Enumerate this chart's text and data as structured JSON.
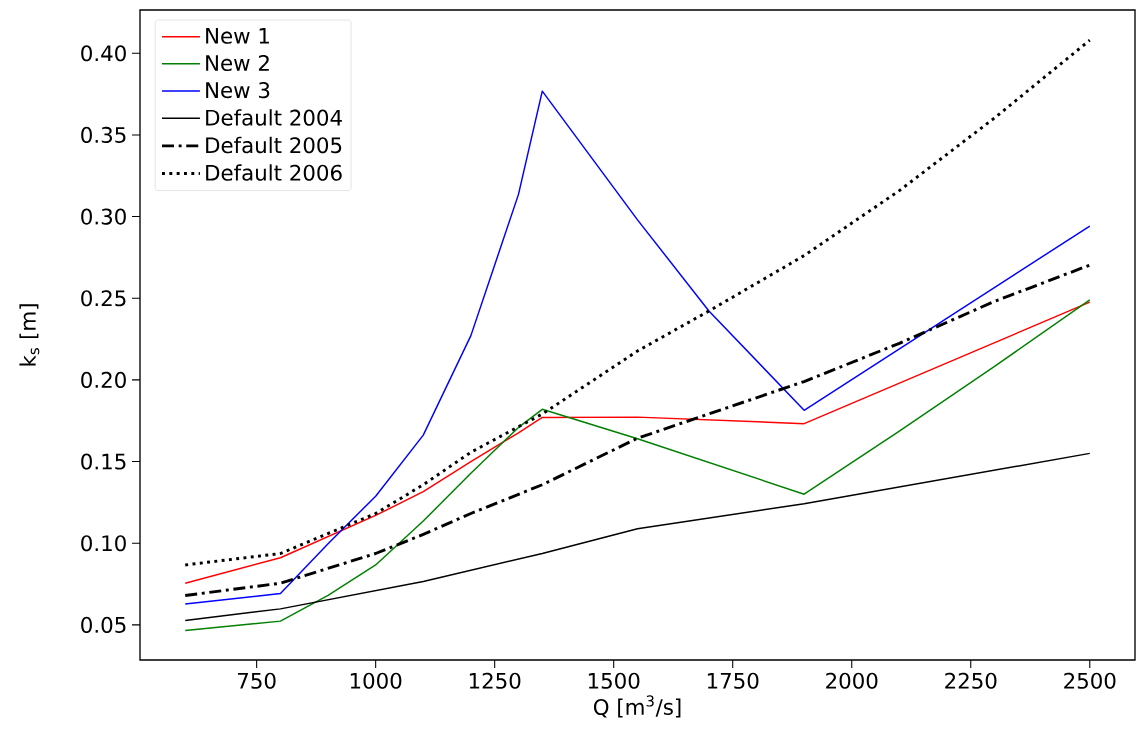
{
  "chart_data": {
    "type": "line",
    "xlabel": "Q [m$^{3}$/s]",
    "ylabel": "k$_{s}$ [m]",
    "xlim": [
      505,
      2595
    ],
    "ylim": [
      0.0285,
      0.4265
    ],
    "xticks": [
      750,
      1000,
      1250,
      1500,
      1750,
      2000,
      2250,
      2500
    ],
    "yticks": [
      {
        "value": 0.05,
        "label": "0.05"
      },
      {
        "value": 0.1,
        "label": "0.10"
      },
      {
        "value": 0.15,
        "label": "0.15"
      },
      {
        "value": 0.2,
        "label": "0.20"
      },
      {
        "value": 0.25,
        "label": "0.25"
      },
      {
        "value": 0.3,
        "label": "0.30"
      },
      {
        "value": 0.35,
        "label": "0.35"
      },
      {
        "value": 0.4,
        "label": "0.40"
      }
    ],
    "legend": "top left",
    "grid": false,
    "marker": "none",
    "series": [
      {
        "name": "New 1",
        "color": "#ff0000",
        "line_style": "solid",
        "x": [
          600,
          800,
          1000,
          1100,
          1200,
          1300,
          1350,
          1550,
          1900,
          2500
        ],
        "values": [
          0.0755,
          0.0911,
          0.117,
          0.1316,
          0.15,
          0.1676,
          0.177,
          0.1772,
          0.1732,
          0.2476
        ]
      },
      {
        "name": "New 2",
        "color": "#008000",
        "line_style": "solid",
        "x": [
          600,
          800,
          900,
          1000,
          1100,
          1200,
          1300,
          1350,
          1550,
          1900,
          2100,
          2300,
          2500
        ],
        "values": [
          0.0465,
          0.0523,
          0.068,
          0.0867,
          0.1136,
          0.1428,
          0.1709,
          0.182,
          0.164,
          0.13,
          0.1686,
          0.2083,
          0.249
        ]
      },
      {
        "name": "New 3",
        "color": "#0000ff",
        "line_style": "solid",
        "x": [
          600,
          800,
          900,
          1000,
          1100,
          1200,
          1300,
          1350,
          1550,
          1700,
          1900,
          2500
        ],
        "values": [
          0.0628,
          0.0692,
          0.0996,
          0.1288,
          0.1662,
          0.2271,
          0.3136,
          0.3768,
          0.298,
          0.2422,
          0.1814,
          0.2942
        ]
      },
      {
        "name": "Default 2004",
        "color": "#000000",
        "line_style": "solid",
        "x": [
          600,
          800,
          1100,
          1350,
          1550,
          1900,
          2500
        ],
        "values": [
          0.0527,
          0.0598,
          0.0766,
          0.0937,
          0.1089,
          0.1242,
          0.155
        ]
      },
      {
        "name": "Default 2005",
        "color": "#000000",
        "line_style": "dashdot",
        "x": [
          600,
          800,
          1000,
          1100,
          1200,
          1350,
          1550,
          1900,
          2100,
          2300,
          2500
        ],
        "values": [
          0.068,
          0.0755,
          0.0937,
          0.1054,
          0.1182,
          0.1358,
          0.1643,
          0.199,
          0.2224,
          0.2481,
          0.2703
        ]
      },
      {
        "name": "Default 2006",
        "color": "#000000",
        "line_style": "dotted",
        "x": [
          600,
          800,
          1000,
          1100,
          1200,
          1350,
          1550,
          1700,
          1900,
          2100,
          2300,
          2500
        ],
        "values": [
          0.0867,
          0.0937,
          0.1182,
          0.1358,
          0.1557,
          0.1791,
          0.2177,
          0.2422,
          0.2761,
          0.3159,
          0.3604,
          0.408
        ]
      }
    ]
  }
}
